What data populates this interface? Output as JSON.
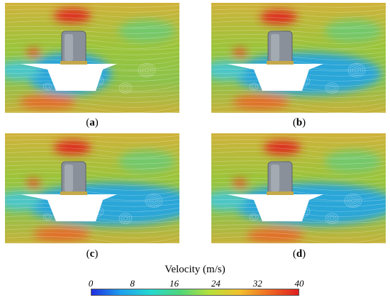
{
  "panels": [
    {
      "id": "a",
      "label": "a"
    },
    {
      "id": "b",
      "label": "b"
    },
    {
      "id": "c",
      "label": "c"
    },
    {
      "id": "d",
      "label": "d"
    }
  ],
  "colorbar": {
    "title": "Velocity (m/s)",
    "ticks": [
      "0",
      "8",
      "16",
      "24",
      "32",
      "40"
    ],
    "min": 0,
    "max": 40,
    "colors": [
      "#1f2de0",
      "#1ea0ee",
      "#24d8d0",
      "#4fd67a",
      "#b6e03a",
      "#f2c02c",
      "#ef6a22",
      "#de1f1f"
    ]
  },
  "colors": {
    "field": "#8fbf3a",
    "wake": "#2aa6d8",
    "high": "#de2a1f",
    "deck": "#ffffff",
    "vehicle": "#8a9099"
  }
}
